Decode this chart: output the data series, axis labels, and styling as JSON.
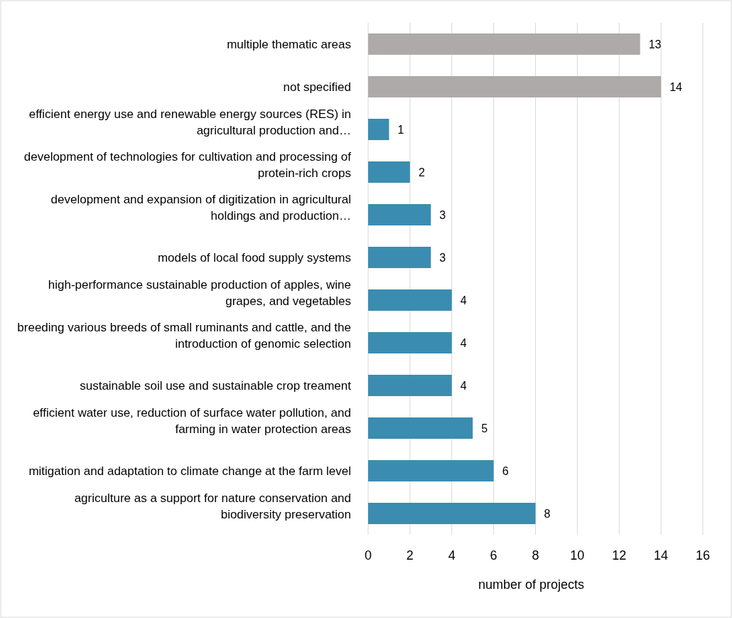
{
  "chart_data": {
    "type": "bar",
    "orientation": "horizontal",
    "categories": [
      "multiple thematic areas",
      "not specified",
      "efficient energy use and renewable energy sources (RES) in agricultural production and…",
      "development of technologies for cultivation and processing of protein-rich crops",
      "development and expansion of digitization in agricultural holdings and production…",
      "models of local food supply systems",
      "high-performance sustainable production of apples, wine grapes, and vegetables",
      "breeding various breeds of small ruminants and cattle, and the introduction of genomic selection",
      "sustainable soil use and sustainable crop treament",
      "efficient water use, reduction of surface water pollution, and farming in water protection areas",
      "mitigation and adaptation to climate change at the farm level",
      "agriculture as a support for nature conservation and biodiversity preservation"
    ],
    "values": [
      13,
      14,
      1,
      2,
      3,
      3,
      4,
      4,
      4,
      5,
      6,
      8
    ],
    "colors": [
      "#aeaaaa",
      "#aeaaaa",
      "#3a8db0",
      "#3a8db0",
      "#3a8db0",
      "#3a8db0",
      "#3a8db0",
      "#3a8db0",
      "#3a8db0",
      "#3a8db0",
      "#3a8db0",
      "#3a8db0"
    ],
    "xlim": [
      0,
      16
    ],
    "xticks": [
      0,
      2,
      4,
      6,
      8,
      10,
      12,
      14,
      16
    ],
    "grid": "x",
    "data_labels": true,
    "xlabel": "number of projects"
  }
}
